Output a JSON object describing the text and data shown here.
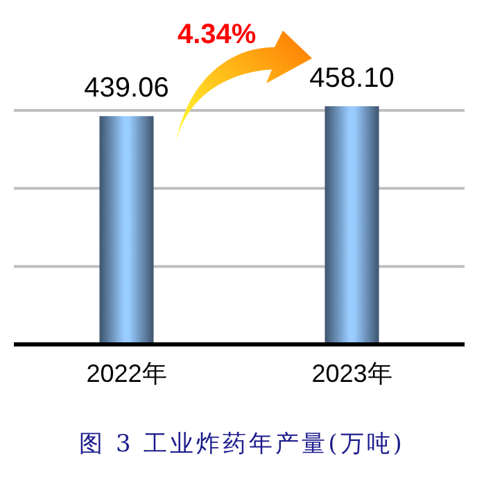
{
  "chart_data": {
    "type": "bar",
    "title": "图 3 工业炸药年产量(万吨)",
    "categories": [
      "2022年",
      "2023年"
    ],
    "values": [
      439.06,
      458.1
    ],
    "value_labels": [
      "439.06",
      "458.10"
    ],
    "color": "#99ccff",
    "yticks": [
      {
        "value": 150,
        "label": null
      },
      {
        "value": 300,
        "label": null
      },
      {
        "value": 450,
        "label": null
      }
    ],
    "grid": "y",
    "tick_labels": "x",
    "annotations": [
      "4.34%"
    ]
  }
}
